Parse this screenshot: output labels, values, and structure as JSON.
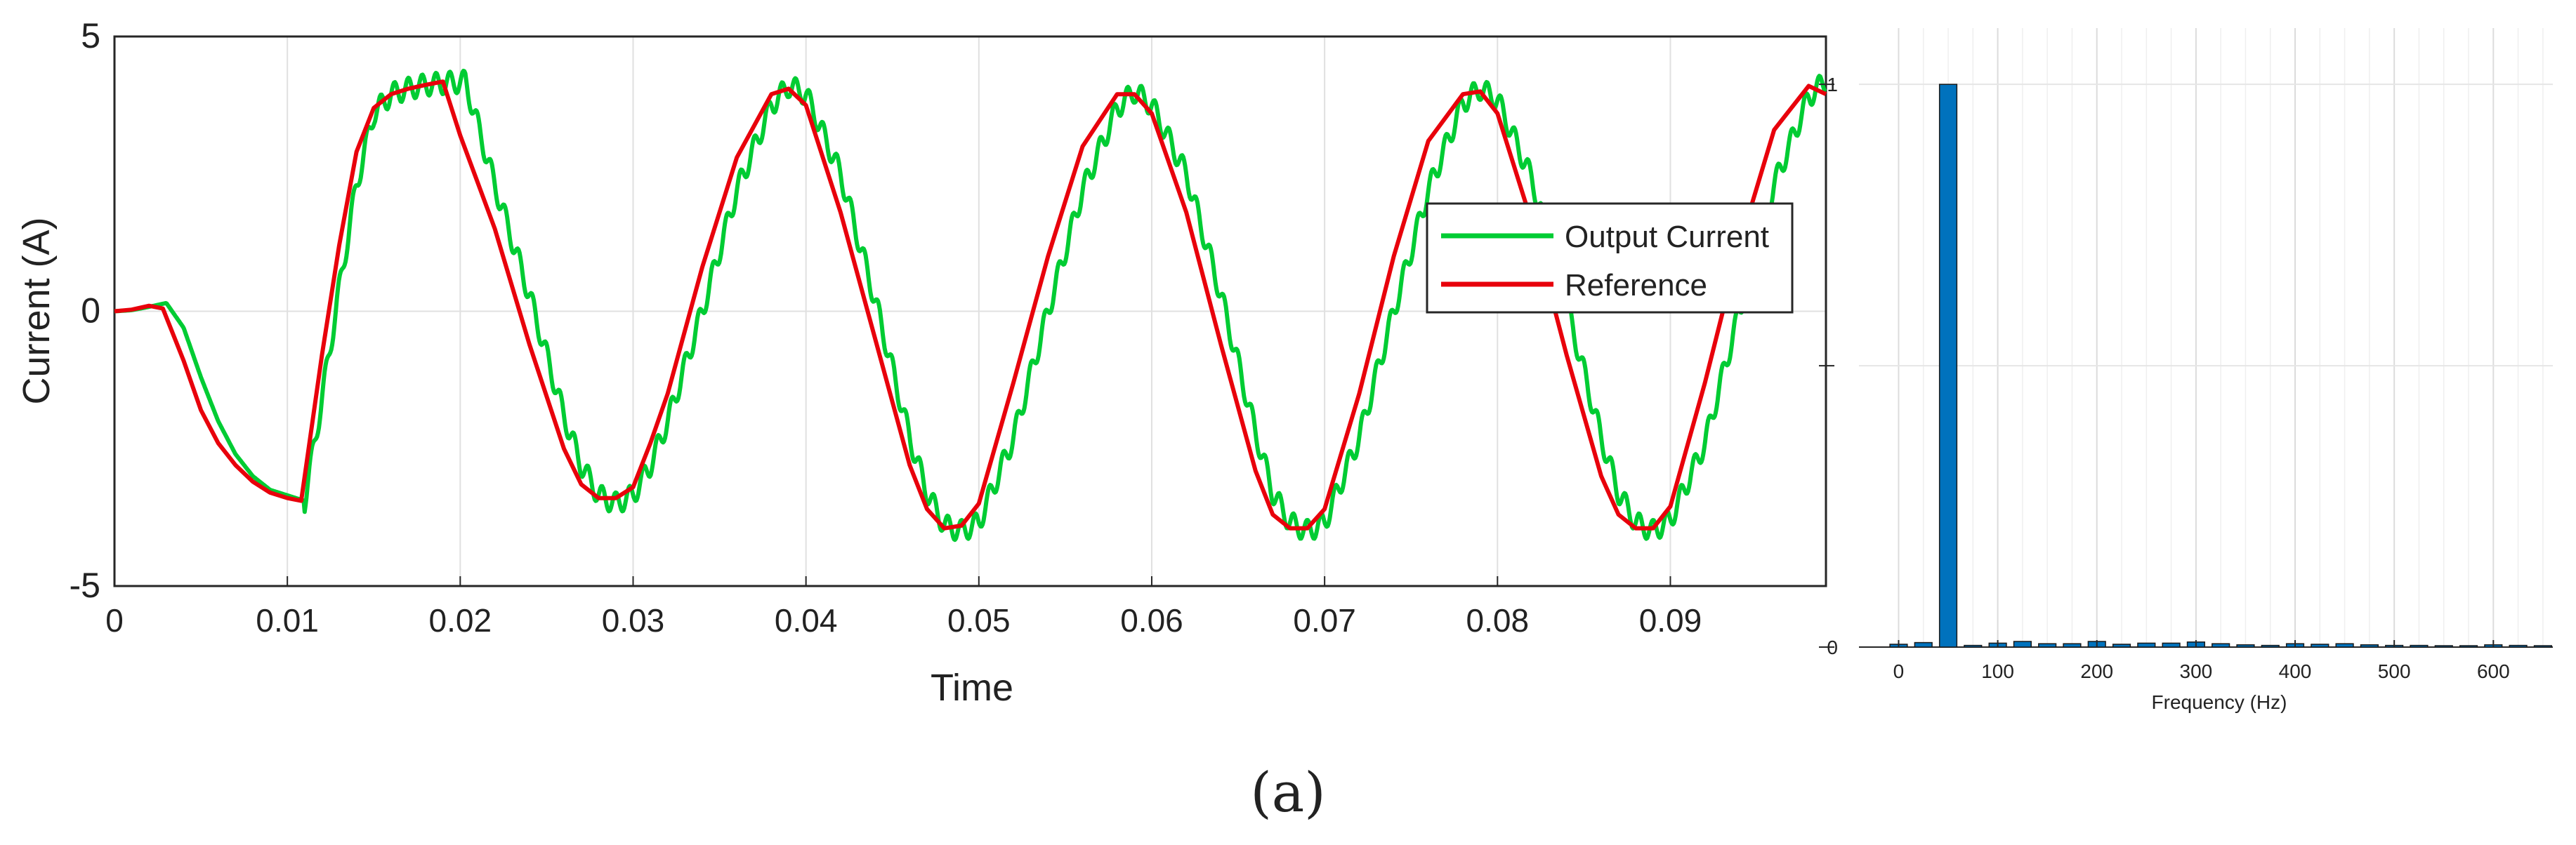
{
  "caption": "(a)",
  "colors": {
    "output_current": "#00cc33",
    "reference": "#e8000b",
    "bar": "#0072bd",
    "grid": "#e0e0e0",
    "axis": "#262626"
  },
  "chart_data": [
    {
      "type": "line",
      "title": "",
      "xlabel": "Time",
      "ylabel": "Current (A)",
      "xlim": [
        0,
        0.099
      ],
      "ylim": [
        -5,
        5
      ],
      "xticks": [
        "0",
        "0.01",
        "0.02",
        "0.03",
        "0.04",
        "0.05",
        "0.06",
        "0.07",
        "0.08",
        "0.09"
      ],
      "yticks": [
        "-5",
        "0",
        "5"
      ],
      "grid": true,
      "legend_position": "right-center",
      "series": [
        {
          "name": "Output Current",
          "color": "#00cc33",
          "ripple_amplitude": 0.2,
          "ripple_period": 0.0008,
          "x": [
            0,
            0.001,
            0.002,
            0.003,
            0.004,
            0.005,
            0.006,
            0.007,
            0.008,
            0.009,
            0.01,
            0.011,
            0.012,
            0.013,
            0.014,
            0.015,
            0.016,
            0.017,
            0.018,
            0.019,
            0.0203,
            0.022,
            0.024,
            0.026,
            0.027,
            0.028,
            0.029,
            0.03,
            0.031,
            0.032,
            0.034,
            0.036,
            0.038,
            0.039,
            0.04,
            0.042,
            0.044,
            0.046,
            0.047,
            0.048,
            0.049,
            0.05,
            0.052,
            0.054,
            0.056,
            0.058,
            0.059,
            0.06,
            0.062,
            0.064,
            0.066,
            0.067,
            0.068,
            0.069,
            0.07,
            0.072,
            0.074,
            0.076,
            0.078,
            0.079,
            0.08,
            0.082,
            0.084,
            0.086,
            0.087,
            0.088,
            0.089,
            0.09,
            0.092,
            0.094,
            0.096,
            0.098,
            0.099
          ],
          "y": [
            0,
            0.02,
            0.08,
            0.15,
            -0.3,
            -1.2,
            -2.0,
            -2.6,
            -3.0,
            -3.25,
            -3.35,
            -3.45,
            -1.6,
            0.4,
            2.3,
            3.6,
            3.95,
            4.05,
            4.12,
            4.15,
            4.18,
            2.3,
            0.3,
            -1.9,
            -2.8,
            -3.35,
            -3.5,
            -3.35,
            -2.8,
            -2.0,
            0.0,
            2.2,
            3.75,
            4.1,
            3.95,
            2.5,
            0.2,
            -2.3,
            -3.3,
            -3.9,
            -4.0,
            -3.85,
            -2.3,
            0.0,
            2.2,
            3.7,
            4.0,
            3.75,
            2.5,
            0.3,
            -2.2,
            -3.3,
            -3.85,
            -4.0,
            -3.85,
            -2.3,
            0.0,
            2.2,
            3.8,
            4.05,
            3.85,
            2.4,
            0.1,
            -2.3,
            -3.3,
            -3.85,
            -4.0,
            -3.8,
            -2.4,
            0.0,
            2.3,
            3.9,
            4.2
          ]
        },
        {
          "name": "Reference",
          "color": "#e8000b",
          "x": [
            0,
            0.001,
            0.002,
            0.0028,
            0.004,
            0.005,
            0.006,
            0.007,
            0.008,
            0.009,
            0.01,
            0.0108,
            0.012,
            0.013,
            0.014,
            0.015,
            0.016,
            0.017,
            0.018,
            0.019,
            0.02,
            0.022,
            0.024,
            0.026,
            0.027,
            0.028,
            0.029,
            0.03,
            0.031,
            0.032,
            0.034,
            0.036,
            0.038,
            0.039,
            0.04,
            0.042,
            0.044,
            0.046,
            0.047,
            0.048,
            0.049,
            0.05,
            0.052,
            0.054,
            0.056,
            0.058,
            0.059,
            0.06,
            0.062,
            0.064,
            0.066,
            0.067,
            0.068,
            0.069,
            0.07,
            0.072,
            0.074,
            0.076,
            0.078,
            0.079,
            0.08,
            0.082,
            0.084,
            0.086,
            0.087,
            0.088,
            0.089,
            0.09,
            0.092,
            0.094,
            0.096,
            0.098,
            0.099
          ],
          "y": [
            0,
            0.03,
            0.1,
            0.05,
            -0.9,
            -1.8,
            -2.4,
            -2.8,
            -3.1,
            -3.3,
            -3.4,
            -3.45,
            -0.8,
            1.2,
            2.9,
            3.7,
            3.95,
            4.05,
            4.12,
            4.18,
            3.2,
            1.5,
            -0.6,
            -2.5,
            -3.15,
            -3.4,
            -3.4,
            -3.2,
            -2.4,
            -1.5,
            0.8,
            2.8,
            3.95,
            4.05,
            3.75,
            1.8,
            -0.5,
            -2.8,
            -3.6,
            -3.95,
            -3.9,
            -3.5,
            -1.3,
            1.0,
            3.0,
            3.95,
            3.95,
            3.6,
            1.8,
            -0.6,
            -2.9,
            -3.7,
            -3.95,
            -3.95,
            -3.6,
            -1.5,
            1.0,
            3.1,
            3.95,
            4.0,
            3.6,
            1.6,
            -0.8,
            -3.0,
            -3.7,
            -3.95,
            -3.95,
            -3.55,
            -1.3,
            1.2,
            3.3,
            4.1,
            3.95
          ]
        }
      ]
    },
    {
      "type": "bar",
      "title": "",
      "xlabel": "Frequency (Hz)",
      "ylabel": "",
      "xlim": [
        -40,
        660
      ],
      "ylim": [
        0,
        1.1
      ],
      "xticks": [
        "0",
        "100",
        "200",
        "300",
        "400",
        "500",
        "600"
      ],
      "yticks": [
        "0",
        "1"
      ],
      "grid": true,
      "color": "#0072bd",
      "x": [
        0,
        25,
        50,
        75,
        100,
        125,
        150,
        175,
        200,
        225,
        250,
        275,
        300,
        325,
        350,
        375,
        400,
        425,
        450,
        475,
        500,
        525,
        550,
        575,
        600,
        625,
        650
      ],
      "values": [
        0.005,
        0.008,
        1.0,
        0.003,
        0.007,
        0.01,
        0.006,
        0.006,
        0.01,
        0.005,
        0.007,
        0.007,
        0.009,
        0.006,
        0.004,
        0.003,
        0.006,
        0.005,
        0.006,
        0.004,
        0.003,
        0.003,
        0.002,
        0.002,
        0.004,
        0.003,
        0.002
      ]
    }
  ]
}
